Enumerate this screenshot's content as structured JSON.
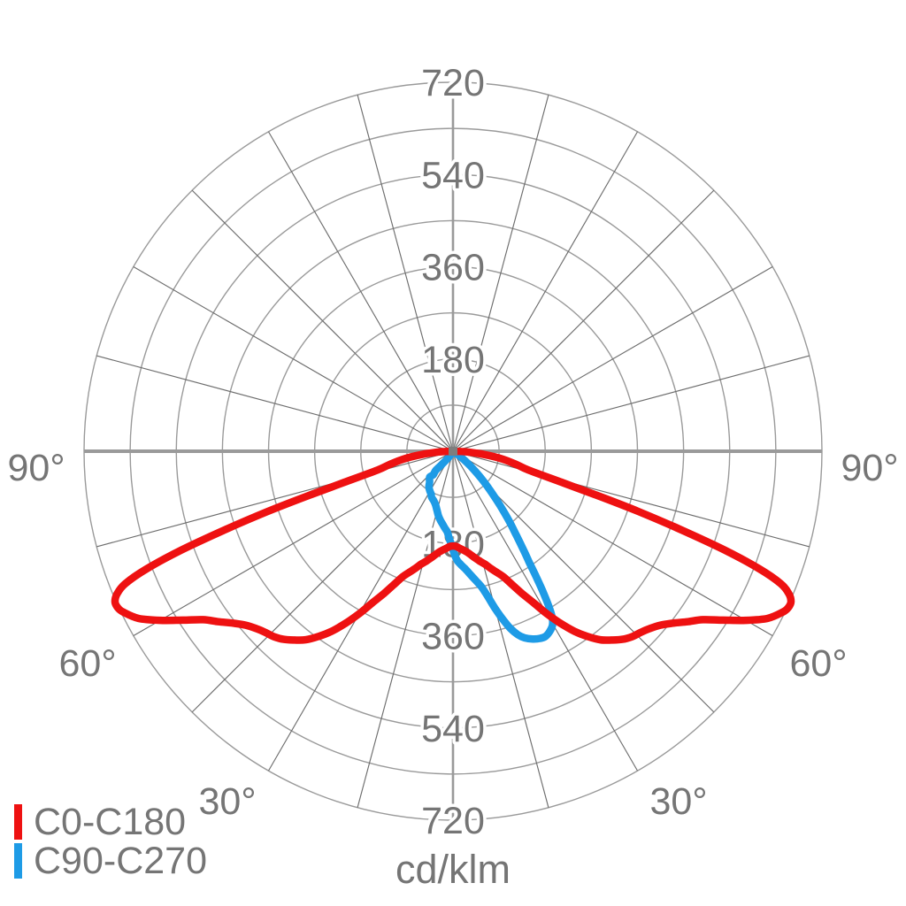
{
  "page": {
    "background": "#ffffff"
  },
  "unit_label": "cd/klm",
  "legend": {
    "items": [
      {
        "label": "C0-C180",
        "color": "#ee1111"
      },
      {
        "label": "C90-C270",
        "color": "#1e9be6"
      }
    ]
  },
  "chart_data": {
    "type": "line",
    "subtype": "polar-photometric-diagram",
    "title": "",
    "units": "cd/klm",
    "angle_convention": "0 deg = nadir (straight down); positive angles to the right, negative to the left; radius = luminous intensity in cd/klm",
    "rmax": 720,
    "radial_gridlines": [
      90,
      180,
      270,
      360,
      450,
      540,
      630,
      720
    ],
    "radial_tick_labels": [
      "180",
      "360",
      "540",
      "720"
    ],
    "radial_tick_values": [
      180,
      360,
      540,
      720
    ],
    "angle_grid_step_deg": 15,
    "angle_tick_labels": [
      {
        "angle": 90,
        "label": "90°"
      },
      {
        "angle": 60,
        "label": "60°"
      },
      {
        "angle": 30,
        "label": "30°"
      }
    ],
    "legend_position": "bottom-left",
    "grid": true,
    "colors": {
      "grid_circle": "#9a9a9a",
      "grid_ray": "#6d6d6d",
      "axis": "#9a9a9a",
      "text": "#757575",
      "center_marker": "#7e7e7e",
      "series_c0": "#ee1111",
      "series_c90": "#1e9be6"
    },
    "series": [
      {
        "name": "C90-C270",
        "color": "#1e9be6",
        "points": [
          [
            -33,
            0
          ],
          [
            -36,
            16
          ],
          [
            -40,
            33
          ],
          [
            -42,
            50
          ],
          [
            -40,
            60
          ],
          [
            -42,
            68
          ],
          [
            -37,
            76
          ],
          [
            -34,
            84
          ],
          [
            -30,
            90
          ],
          [
            -27,
            94
          ],
          [
            -25,
            99
          ],
          [
            -21,
            104
          ],
          [
            -18,
            110
          ],
          [
            -15,
            120
          ],
          [
            -12.5,
            130
          ],
          [
            -10,
            138
          ],
          [
            -8,
            144
          ],
          [
            -6,
            151
          ],
          [
            -4,
            158
          ],
          [
            -2.5,
            170
          ],
          [
            -1,
            182
          ],
          [
            0,
            193
          ],
          [
            2,
            212
          ],
          [
            4,
            222
          ],
          [
            6,
            231
          ],
          [
            8,
            243
          ],
          [
            10,
            256
          ],
          [
            12,
            272
          ],
          [
            13.5,
            292
          ],
          [
            15,
            318
          ],
          [
            16.5,
            342
          ],
          [
            18,
            364
          ],
          [
            19.5,
            380
          ],
          [
            21,
            390
          ],
          [
            23,
            398
          ],
          [
            25,
            403
          ],
          [
            26.5,
            404
          ],
          [
            28,
            400
          ],
          [
            29.5,
            393
          ],
          [
            30.5,
            383
          ],
          [
            31.5,
            362
          ],
          [
            32.5,
            330
          ],
          [
            33.5,
            295
          ],
          [
            34.5,
            262
          ],
          [
            35.5,
            238
          ],
          [
            37,
            205
          ],
          [
            38.5,
            180
          ],
          [
            40,
            155
          ],
          [
            42,
            125
          ],
          [
            44,
            100
          ],
          [
            46,
            78
          ],
          [
            48,
            58
          ],
          [
            50,
            42
          ],
          [
            52,
            28
          ],
          [
            54,
            16
          ],
          [
            56,
            8
          ],
          [
            58,
            3
          ],
          [
            60,
            0
          ]
        ]
      },
      {
        "name": "C0-C180",
        "color": "#ee1111",
        "points": [
          [
            -90,
            0
          ],
          [
            -87,
            28
          ],
          [
            -84,
            62
          ],
          [
            -81,
            98
          ],
          [
            -78,
            128
          ],
          [
            -76,
            152
          ],
          [
            -74,
            222
          ],
          [
            -73,
            290
          ],
          [
            -72,
            380
          ],
          [
            -71,
            470
          ],
          [
            -70,
            565
          ],
          [
            -69,
            640
          ],
          [
            -68,
            690
          ],
          [
            -67,
            712
          ],
          [
            -66,
            722
          ],
          [
            -65,
            722
          ],
          [
            -64,
            716
          ],
          [
            -62,
            695
          ],
          [
            -60,
            660
          ],
          [
            -58,
            622
          ],
          [
            -56,
            588
          ],
          [
            -54,
            566
          ],
          [
            -52,
            545
          ],
          [
            -50,
            528
          ],
          [
            -48,
            517
          ],
          [
            -46,
            509
          ],
          [
            -44,
            503
          ],
          [
            -42,
            494
          ],
          [
            -40,
            481
          ],
          [
            -38,
            467
          ],
          [
            -36,
            447
          ],
          [
            -34,
            424
          ],
          [
            -32,
            396
          ],
          [
            -30,
            366
          ],
          [
            -28,
            335
          ],
          [
            -26,
            310
          ],
          [
            -24,
            286
          ],
          [
            -22,
            265
          ],
          [
            -20,
            252
          ],
          [
            -18,
            241
          ],
          [
            -16,
            230
          ],
          [
            -14,
            222
          ],
          [
            -12,
            214
          ],
          [
            -10,
            206
          ],
          [
            -8,
            199
          ],
          [
            -6,
            194
          ],
          [
            -4,
            190
          ],
          [
            -2,
            186
          ],
          [
            0,
            185
          ],
          [
            2,
            186
          ],
          [
            4,
            190
          ],
          [
            6,
            194
          ],
          [
            8,
            199
          ],
          [
            10,
            206
          ],
          [
            12,
            214
          ],
          [
            14,
            222
          ],
          [
            16,
            230
          ],
          [
            18,
            241
          ],
          [
            20,
            252
          ],
          [
            22,
            265
          ],
          [
            24,
            286
          ],
          [
            26,
            310
          ],
          [
            28,
            335
          ],
          [
            30,
            366
          ],
          [
            32,
            396
          ],
          [
            34,
            424
          ],
          [
            36,
            447
          ],
          [
            38,
            467
          ],
          [
            40,
            481
          ],
          [
            42,
            494
          ],
          [
            44,
            503
          ],
          [
            46,
            509
          ],
          [
            48,
            517
          ],
          [
            50,
            528
          ],
          [
            52,
            545
          ],
          [
            54,
            566
          ],
          [
            56,
            588
          ],
          [
            58,
            622
          ],
          [
            60,
            660
          ],
          [
            62,
            695
          ],
          [
            64,
            716
          ],
          [
            65,
            722
          ],
          [
            66,
            722
          ],
          [
            67,
            712
          ],
          [
            68,
            690
          ],
          [
            69,
            640
          ],
          [
            70,
            565
          ],
          [
            71,
            470
          ],
          [
            72,
            380
          ],
          [
            73,
            290
          ],
          [
            74,
            222
          ],
          [
            76,
            152
          ],
          [
            78,
            128
          ],
          [
            81,
            98
          ],
          [
            84,
            62
          ],
          [
            87,
            28
          ],
          [
            90,
            0
          ]
        ]
      }
    ]
  }
}
